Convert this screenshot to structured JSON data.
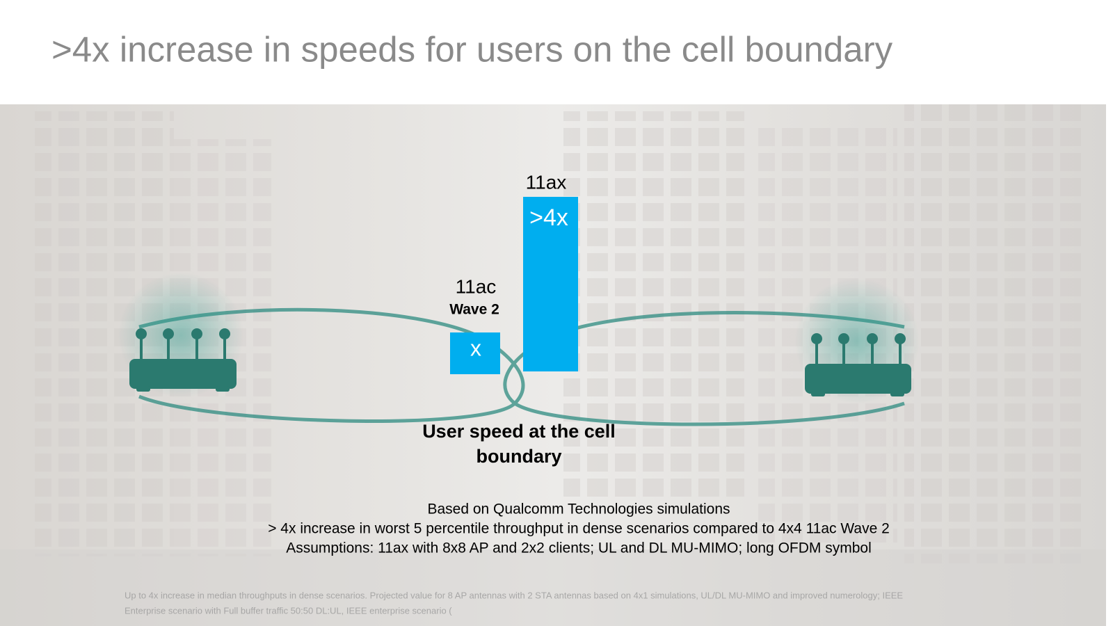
{
  "header": {
    "title": ">4x increase in speeds for users on the cell boundary"
  },
  "bars": [
    {
      "label": "11ac",
      "sublabel": "Wave 2",
      "inner_text": "x"
    },
    {
      "label": "11ax",
      "inner_text": ">4x"
    }
  ],
  "caption": [
    "User speed at the cell",
    "boundary"
  ],
  "notes": [
    "Based on Qualcomm Technologies simulations",
    "> 4x increase in worst 5 percentile throughput in dense scenarios compared to 4x4 11ac Wave 2",
    "Assumptions: 11ax with 8x8 AP and 2x2 clients;  UL and DL MU-MIMO; long OFDM symbol"
  ],
  "footnote": [
    "Up to 4x increase in median throughputs in dense scenarios. Projected value for 8 AP antennas with 2 STA antennas based on 4x1 simulations, UL/DL MU-MIMO and improved numerology; IEEE",
    "Enterprise scenario with  Full buffer traffic 50:50 DL:UL,  IEEE enterprise scenario ("
  ]
}
